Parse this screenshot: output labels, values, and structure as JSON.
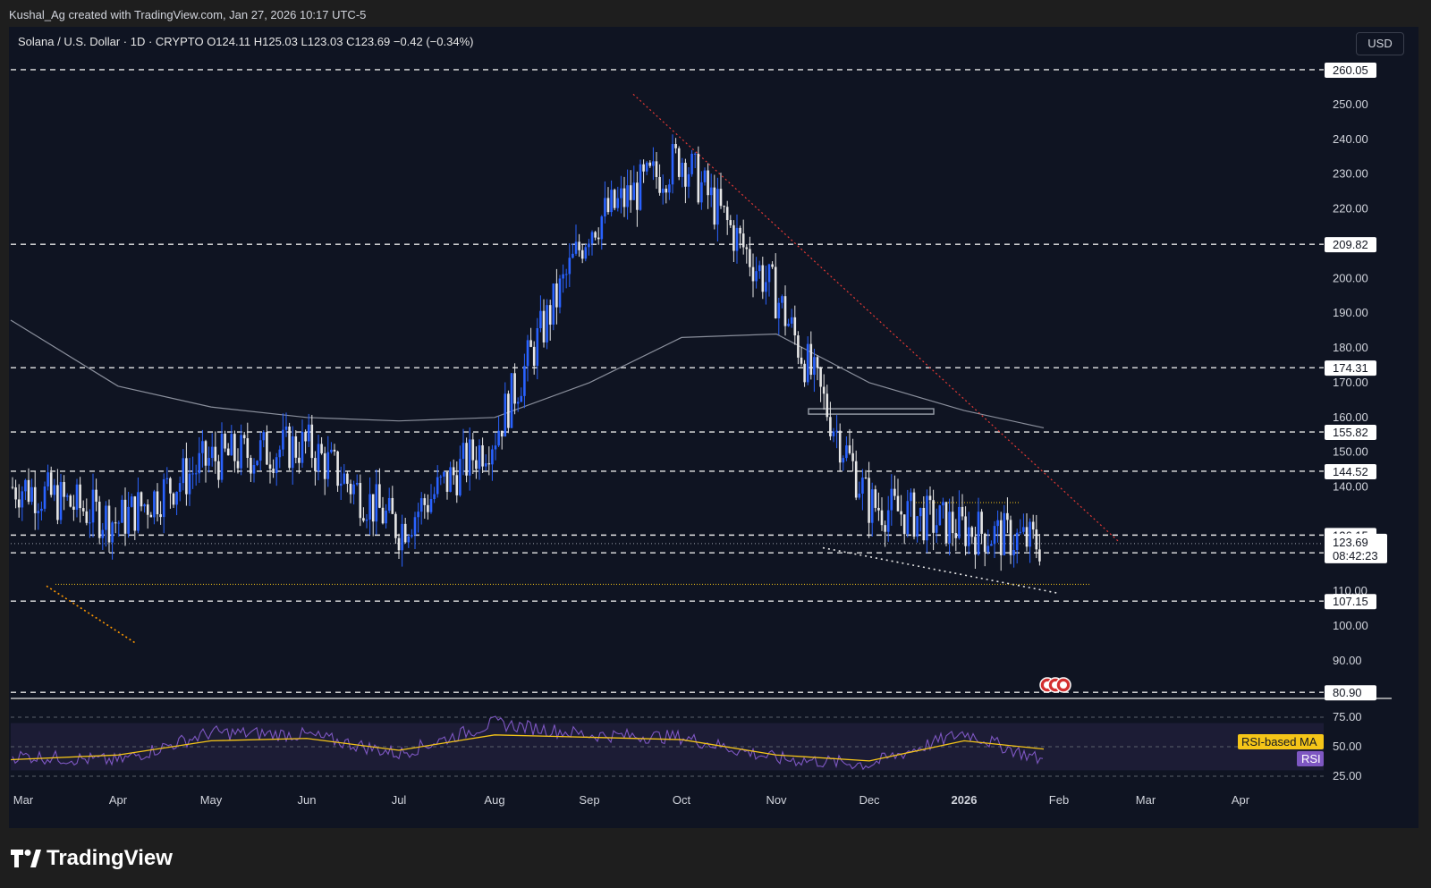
{
  "credit": "Kushal_Ag created with TradingView.com, Jan 27, 2026 10:17 UTC-5",
  "header": {
    "ohlc": "Solana / U.S. Dollar · 1D · CRYPTO  O124.11  H125.03  L123.03  C123.69  −0.42 (−0.34%)"
  },
  "currency": "USD",
  "brand": {
    "name": "TradingView",
    "icon": "tradingview-logo-icon"
  },
  "colors": {
    "background": "#0f1422",
    "up": "#2962ff",
    "down": "#e6e6e6",
    "ma": "#8a8f9c",
    "rsi": "#7e57c2",
    "rsi_ma": "#f5c518",
    "trendline": "#e53935",
    "support": "#f5c518"
  },
  "chart_data": [
    {
      "type": "candlestick",
      "title": "Solana / U.S. Dollar · 1D · CRYPTO",
      "ylim": [
        80.9,
        260.05
      ],
      "y_ticks": [
        "250.00",
        "240.00",
        "230.00",
        "220.00",
        "200.00",
        "190.00",
        "180.00",
        "170.00",
        "160.00",
        "150.00",
        "140.00",
        "110.00",
        "100.00",
        "90.00"
      ],
      "x_ticks": [
        "Mar",
        "Apr",
        "May",
        "Jun",
        "Jul",
        "Aug",
        "Sep",
        "Oct",
        "Nov",
        "Dec",
        "2026",
        "Feb",
        "Mar",
        "Apr"
      ],
      "price_levels": [
        260.05,
        209.82,
        174.31,
        155.82,
        144.52,
        126.15,
        121.05,
        107.15,
        80.9
      ],
      "level_labels": [
        "260.05",
        "209.82",
        "174.31",
        "155.82",
        "144.52",
        "126.15",
        "121.05",
        "107.15",
        "80.90"
      ],
      "last_price": "123.69",
      "countdown": "08:42:23",
      "close_series": {
        "x": [
          "Mar",
          "Apr",
          "May",
          "Jun",
          "Jul",
          "Aug",
          "Sep",
          "Oct",
          "Nov",
          "Dec",
          "2026",
          "Jan 26"
        ],
        "values": [
          140,
          130,
          148,
          152,
          128,
          155,
          215,
          235,
          195,
          135,
          128,
          123.69
        ]
      },
      "moving_average": {
        "x": [
          "Mar",
          "Apr",
          "May",
          "Jun",
          "Jul",
          "Aug",
          "Sep",
          "Oct",
          "Nov",
          "Dec",
          "2026",
          "Jan 26"
        ],
        "values": [
          188,
          169,
          163,
          160,
          159,
          160,
          170,
          183,
          184,
          170,
          162,
          157
        ]
      }
    },
    {
      "type": "line",
      "title": "RSI",
      "ylim": [
        25,
        75
      ],
      "y_ticks": [
        "75.00",
        "50.00",
        "25.00"
      ],
      "legend": [
        "RSI-based MA",
        "RSI"
      ],
      "series": [
        {
          "name": "RSI",
          "x": [
            "Mar",
            "Apr",
            "May",
            "Jun",
            "Jul",
            "Aug",
            "Sep",
            "Oct",
            "Nov",
            "Dec",
            "2026",
            "Jan 26"
          ],
          "values": [
            42,
            38,
            62,
            60,
            44,
            70,
            60,
            58,
            40,
            35,
            62,
            38
          ]
        },
        {
          "name": "RSI-based MA",
          "x": [
            "Mar",
            "Apr",
            "May",
            "Jun",
            "Jul",
            "Aug",
            "Sep",
            "Oct",
            "Nov",
            "Dec",
            "2026",
            "Jan 26"
          ],
          "values": [
            39,
            43,
            55,
            57,
            47,
            60,
            58,
            56,
            43,
            38,
            55,
            48
          ]
        }
      ]
    }
  ]
}
